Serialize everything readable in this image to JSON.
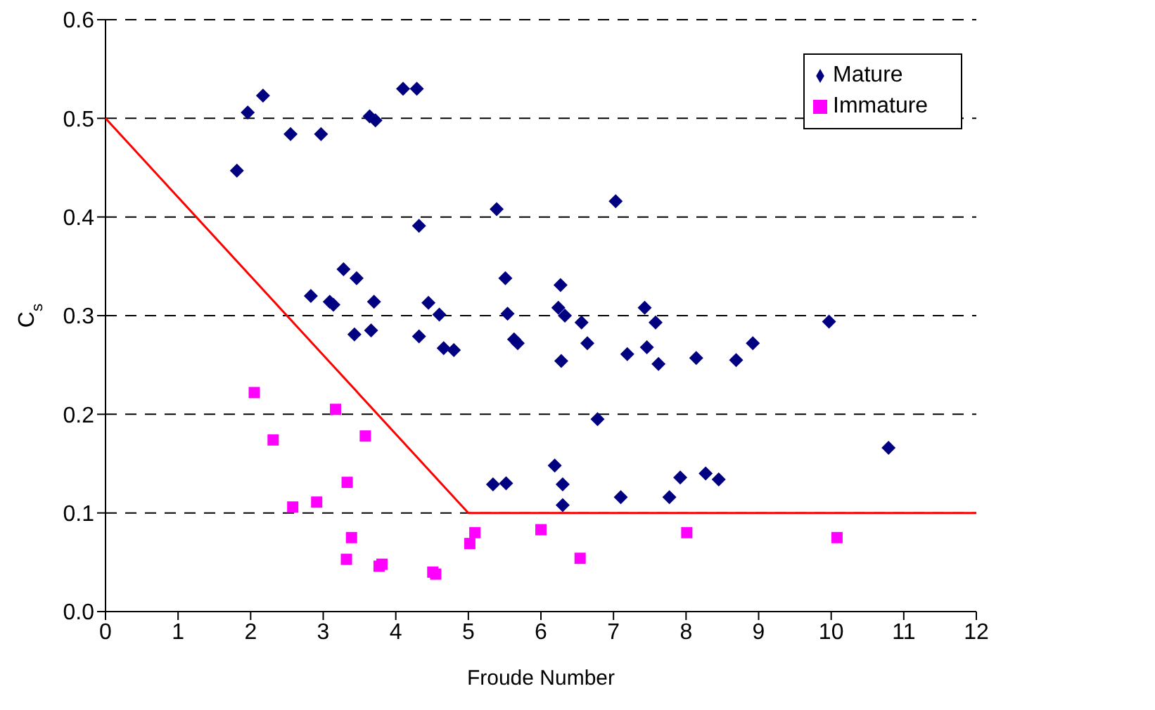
{
  "chart_data": {
    "type": "scatter",
    "xlabel": "Froude Number",
    "ylabel": "C$_{s}$",
    "xlim": [
      0,
      12
    ],
    "ylim": [
      0,
      0.6
    ],
    "xticks": [
      0,
      1,
      2,
      3,
      4,
      5,
      6,
      7,
      8,
      9,
      10,
      11,
      12
    ],
    "yticks": [
      {
        "value": 0,
        "label": "0.0"
      },
      0.1,
      0.2,
      0.3,
      0.4,
      0.5,
      0.6
    ],
    "grid": "y",
    "legend": "top right",
    "series": [
      {
        "name": "Mature",
        "type": "scatter",
        "marker": "diamond",
        "color": "#000080",
        "x": [
          1.81,
          1.96,
          2.17,
          2.55,
          2.97,
          3.64,
          3.72,
          4.1,
          4.29,
          4.32,
          5.39,
          3.28,
          3.46,
          5.51,
          2.83,
          3.09,
          3.14,
          3.7,
          4.45,
          4.6,
          3.43,
          3.66,
          4.32,
          4.66,
          4.8,
          5.54,
          5.63,
          5.68,
          5.34,
          5.52,
          7.03,
          6.27,
          6.24,
          6.33,
          6.56,
          6.64,
          6.28,
          6.78,
          7.19,
          7.43,
          7.58,
          7.46,
          7.62,
          8.14,
          8.69,
          8.92,
          9.97,
          10.79,
          6.19,
          6.3,
          6.3,
          7.1,
          7.77,
          7.92,
          8.27,
          8.45
        ],
        "values": [
          0.447,
          0.506,
          0.523,
          0.484,
          0.484,
          0.502,
          0.498,
          0.53,
          0.53,
          0.391,
          0.408,
          0.347,
          0.338,
          0.338,
          0.32,
          0.314,
          0.311,
          0.314,
          0.313,
          0.301,
          0.281,
          0.285,
          0.279,
          0.267,
          0.265,
          0.302,
          0.276,
          0.272,
          0.129,
          0.13,
          0.416,
          0.331,
          0.308,
          0.3,
          0.293,
          0.272,
          0.254,
          0.195,
          0.261,
          0.308,
          0.293,
          0.268,
          0.251,
          0.257,
          0.255,
          0.272,
          0.294,
          0.166,
          0.148,
          0.129,
          0.108,
          0.116,
          0.116,
          0.136,
          0.14,
          0.134
        ]
      },
      {
        "name": "Immature",
        "type": "scatter",
        "marker": "square",
        "color": "#ff00ff",
        "x": [
          2.05,
          2.31,
          2.58,
          2.91,
          3.17,
          3.58,
          3.33,
          3.39,
          3.32,
          3.77,
          3.81,
          4.51,
          4.55,
          5.02,
          5.09,
          6.0,
          6.54,
          8.01,
          10.08
        ],
        "values": [
          0.222,
          0.174,
          0.106,
          0.111,
          0.205,
          0.178,
          0.131,
          0.075,
          0.053,
          0.046,
          0.048,
          0.04,
          0.038,
          0.069,
          0.08,
          0.083,
          0.054,
          0.08,
          0.075
        ]
      },
      {
        "type": "line",
        "marker": "none",
        "line_style": "solid",
        "color": "#ff0000",
        "x": [
          0,
          5,
          12
        ],
        "values": [
          0.5,
          0.1,
          0.1
        ]
      }
    ]
  }
}
